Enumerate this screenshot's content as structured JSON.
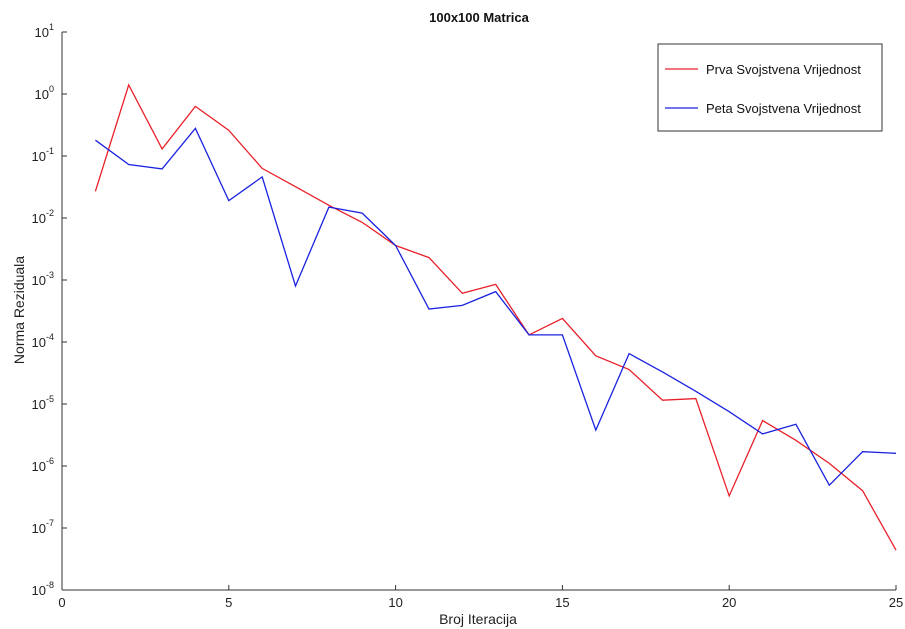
{
  "chart_data": {
    "type": "line",
    "title": "100x100 Matrica",
    "xlabel": "Broj Iteracija",
    "ylabel": "Norma Reziduala",
    "xlim": [
      0,
      25
    ],
    "ylim": [
      1e-08,
      10
    ],
    "yscale": "log",
    "x_ticks": [
      0,
      5,
      10,
      15,
      20,
      25
    ],
    "x_tick_labels": [
      "0",
      "5",
      "10",
      "15",
      "20",
      "25"
    ],
    "y_ticks": [
      {
        "value": 1e-08,
        "base": "10",
        "exp": "-8"
      },
      {
        "value": 1e-07,
        "base": "10",
        "exp": "-7"
      },
      {
        "value": 1e-06,
        "base": "10",
        "exp": "-6"
      },
      {
        "value": 1e-05,
        "base": "10",
        "exp": "-5"
      },
      {
        "value": 0.0001,
        "base": "10",
        "exp": "-4"
      },
      {
        "value": 0.001,
        "base": "10",
        "exp": "-3"
      },
      {
        "value": 0.01,
        "base": "10",
        "exp": "-2"
      },
      {
        "value": 0.1,
        "base": "10",
        "exp": "-1"
      },
      {
        "value": 1,
        "base": "10",
        "exp": "0"
      },
      {
        "value": 10,
        "base": "10",
        "exp": "1"
      }
    ],
    "grid": false,
    "legend_position": "top-right",
    "x": [
      1,
      2,
      3,
      4,
      5,
      6,
      7,
      8,
      9,
      10,
      11,
      12,
      13,
      14,
      15,
      16,
      17,
      18,
      19,
      20,
      21,
      22,
      23,
      24,
      25
    ],
    "series": [
      {
        "name": "Prva Svojstvena Vrijednost",
        "color": "#e8202a",
        "values": [
          0.027,
          1.4,
          0.13,
          0.63,
          0.26,
          0.063,
          0.032,
          0.016,
          0.0085,
          0.0036,
          0.0023,
          0.00061,
          0.00085,
          0.00013,
          0.00024,
          6e-05,
          3.6e-05,
          1.15e-05,
          1.22e-05,
          3.3e-07,
          5.4e-06,
          2.6e-06,
          1.1e-06,
          4e-07,
          4.4e-08
        ]
      },
      {
        "name": "Peta Svojstvena Vrijednost",
        "color": "#1a22e0",
        "values": [
          0.18,
          0.073,
          0.062,
          0.28,
          0.019,
          0.046,
          0.0008,
          0.015,
          0.012,
          0.0036,
          0.00034,
          0.00039,
          0.00065,
          0.00013,
          0.00013,
          3.8e-06,
          6.5e-05,
          3.3e-05,
          1.6e-05,
          7.5e-06,
          3.3e-06,
          4.7e-06,
          4.9e-07,
          1.7e-06,
          1.6e-06
        ]
      }
    ]
  }
}
